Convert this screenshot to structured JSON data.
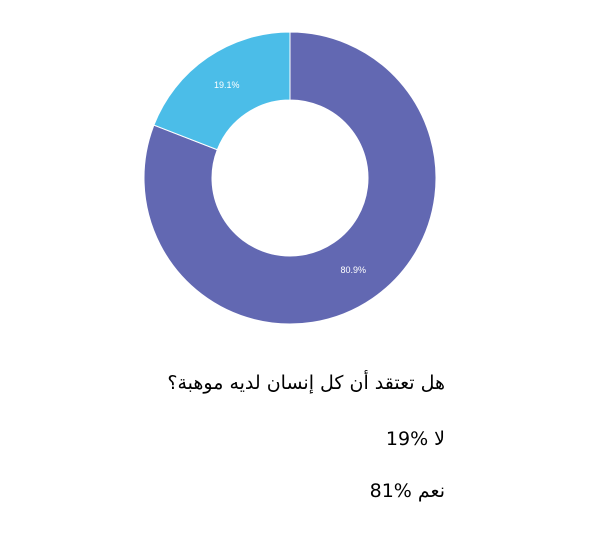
{
  "chart_data": {
    "type": "donut",
    "values": [
      80.9,
      19.1
    ],
    "value_labels": [
      "80.9%",
      "19.1%"
    ],
    "colors": [
      "#6268b2",
      "#4bbde8"
    ]
  },
  "text": {
    "question": "هل تعتقد أن كل إنسان لديه موهبة؟",
    "answers": [
      "لا %19",
      "نعم %81"
    ]
  }
}
